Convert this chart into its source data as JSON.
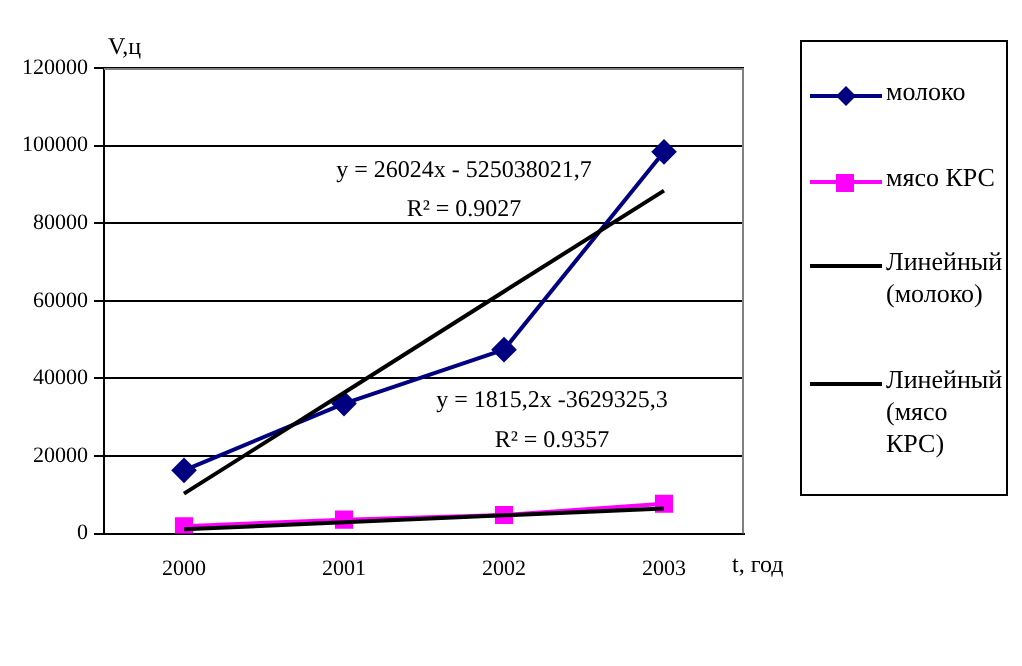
{
  "chart_data": {
    "type": "line",
    "xlabel": "t, год",
    "ylabel": "V,ц",
    "categories": [
      "2000",
      "2001",
      "2002",
      "2003"
    ],
    "series": [
      {
        "name": "молоко",
        "color": "#000080",
        "marker": "diamond",
        "values": [
          16300,
          33500,
          47400,
          98400
        ]
      },
      {
        "name": "мясо КРС",
        "color": "#ff00ff",
        "marker": "square",
        "values": [
          1900,
          3600,
          4800,
          7700
        ]
      },
      {
        "name": "Линейный (молоко)",
        "color": "#000000",
        "marker": "none",
        "values": [
          10300,
          36300,
          62400,
          88400
        ]
      },
      {
        "name": "Линейный (мясо КРС)",
        "color": "#000000",
        "marker": "none",
        "values": [
          1100,
          2900,
          4700,
          6500
        ]
      }
    ],
    "annotations": [
      "y = 26024x - 525038021,7",
      "R² = 0.9027",
      "y = 1815,2x -3629325,3",
      "R² = 0.9357"
    ],
    "ylim": [
      0,
      120000
    ],
    "yticks": [
      0,
      20000,
      40000,
      60000,
      80000,
      100000,
      120000
    ],
    "grid": "y",
    "legend": "right"
  }
}
